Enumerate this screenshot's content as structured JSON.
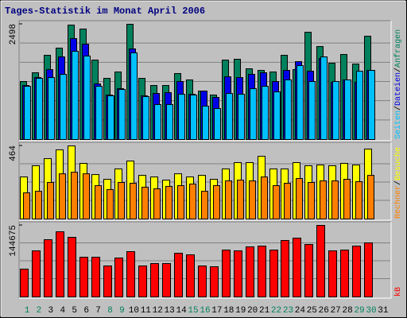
{
  "chart_data": [
    {
      "type": "bar",
      "title": "Tages-Statistik im Monat April 2006",
      "ylim": [
        0,
        2498
      ],
      "yticks": [
        2498
      ],
      "grid": true,
      "legend_separator": "/",
      "series": [
        {
          "name": "Anfragen",
          "color": "#00805c",
          "values": [
            1257,
            1447,
            1826,
            1981,
            2480,
            2394,
            1722,
            1326,
            1464,
            2498,
            1326,
            1171,
            1171,
            1430,
            1292,
            1050,
            964,
            1722,
            1740,
            1533,
            1498,
            1464,
            1826,
            1515,
            2325,
            2015,
            1654,
            1843,
            1636,
            2239,
            null
          ]
        },
        {
          "name": "Dateien",
          "color": "#0000e8",
          "values": [
            1171,
            1343,
            1515,
            1791,
            2187,
            2067,
            1206,
            964,
            1102,
            1964,
            947,
            998,
            1016,
            1257,
            981,
            1050,
            912,
            1360,
            1343,
            1412,
            1447,
            1257,
            1498,
            1688,
            1481,
            1757,
            1240,
            1292,
            1240,
            1498,
            null
          ]
        },
        {
          "name": "Seiten",
          "color": "#00c0ff",
          "values": [
            1153,
            1326,
            1343,
            1412,
            1912,
            1809,
            1153,
            947,
            1085,
            1878,
            930,
            758,
            758,
            981,
            964,
            723,
            671,
            998,
            981,
            1102,
            1153,
            1033,
            1292,
            1602,
            1257,
            1791,
            1257,
            1292,
            1481,
            1498,
            null
          ]
        }
      ]
    },
    {
      "type": "bar",
      "ylim": [
        0,
        464
      ],
      "yticks": [
        464
      ],
      "grid": true,
      "legend_separator": "/",
      "series": [
        {
          "name": "Besuche",
          "color": "#ffff00",
          "values": [
            267,
            338,
            383,
            439,
            464,
            353,
            282,
            252,
            318,
            368,
            277,
            267,
            247,
            287,
            267,
            277,
            252,
            318,
            358,
            358,
            398,
            318,
            318,
            358,
            338,
            343,
            338,
            353,
            343,
            444,
            null
          ]
        },
        {
          "name": "Rechner",
          "color": "#ff8000",
          "values": [
            166,
            176,
            232,
            287,
            297,
            287,
            212,
            187,
            232,
            227,
            202,
            192,
            207,
            212,
            222,
            176,
            212,
            242,
            247,
            242,
            267,
            212,
            227,
            257,
            232,
            242,
            242,
            252,
            237,
            277,
            null
          ]
        }
      ]
    },
    {
      "type": "bar",
      "ylim": [
        0,
        144675
      ],
      "yticks": [
        144675
      ],
      "grid": true,
      "categories": [
        "1",
        "2",
        "3",
        "4",
        "5",
        "6",
        "7",
        "8",
        "9",
        "10",
        "11",
        "12",
        "13",
        "14",
        "15",
        "16",
        "17",
        "18",
        "19",
        "20",
        "21",
        "22",
        "23",
        "24",
        "25",
        "26",
        "27",
        "28",
        "29",
        "30",
        "31"
      ],
      "category_colors": [
        "#00805c",
        "#00805c",
        "#000000",
        "#000000",
        "#000000",
        "#000000",
        "#000000",
        "#00805c",
        "#00805c",
        "#000000",
        "#000000",
        "#000000",
        "#000000",
        "#000000",
        "#00805c",
        "#00805c",
        "#000000",
        "#000000",
        "#000000",
        "#000000",
        "#000000",
        "#00805c",
        "#00805c",
        "#000000",
        "#000000",
        "#000000",
        "#000000",
        "#000000",
        "#00805c",
        "#00805c",
        "#000000"
      ],
      "series": [
        {
          "name": "kB",
          "color": "#ff0000",
          "values": [
            56262,
            93235,
            115740,
            131815,
            120562,
            80375,
            80375,
            62693,
            78768,
            91628,
            62693,
            67515,
            67515,
            88413,
            85198,
            62693,
            61085,
            94843,
            93235,
            101273,
            102880,
            94843,
            114133,
            118955,
            106095,
            144675,
            93235,
            94843,
            102880,
            109310,
            null
          ]
        }
      ]
    }
  ]
}
